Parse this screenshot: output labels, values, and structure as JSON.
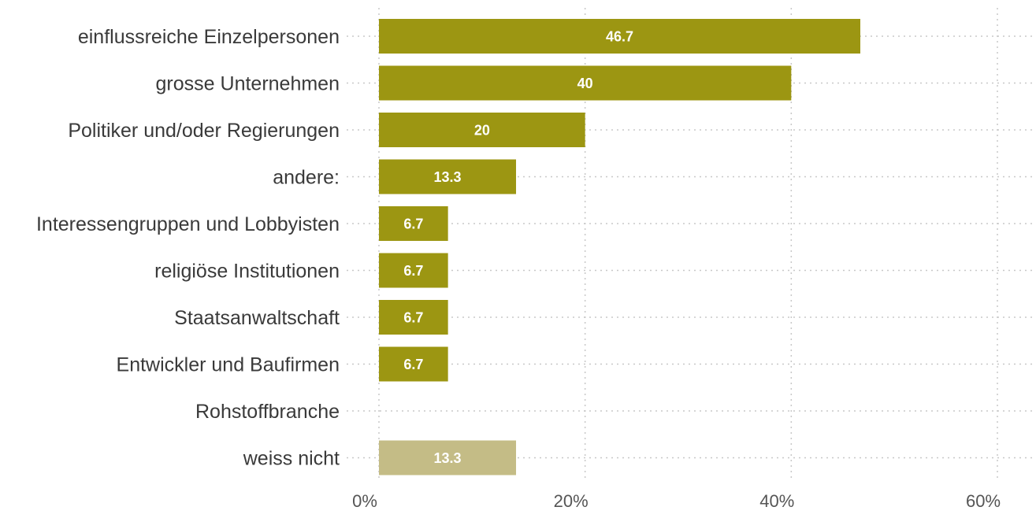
{
  "chart_data": {
    "type": "bar",
    "orientation": "horizontal",
    "categories": [
      "einflussreiche Einzelpersonen",
      "grosse Unternehmen",
      "Politiker und/oder Regierungen",
      "andere:",
      "Interessengruppen und Lobbyisten",
      "religiöse Institutionen",
      "Staatsanwaltschaft",
      "Entwickler und Baufirmen",
      "Rohstoffbranche",
      "weiss nicht"
    ],
    "values": [
      46.7,
      40,
      20,
      13.3,
      6.7,
      6.7,
      6.7,
      6.7,
      0,
      13.3
    ],
    "value_labels": [
      "46.7",
      "40",
      "20",
      "13.3",
      "6.7",
      "6.7",
      "6.7",
      "6.7",
      "",
      "13.3"
    ],
    "bar_colors": [
      "#9c9612",
      "#9c9612",
      "#9c9612",
      "#9c9612",
      "#9c9612",
      "#9c9612",
      "#9c9612",
      "#9c9612",
      "#9c9612",
      "#c4bc86"
    ],
    "xlim": [
      0,
      60
    ],
    "x_ticks": [
      0,
      20,
      40,
      60
    ],
    "x_tick_labels": [
      "0%",
      "20%",
      "40%",
      "60%"
    ],
    "grid": true,
    "title": "",
    "xlabel": "",
    "ylabel": ""
  }
}
